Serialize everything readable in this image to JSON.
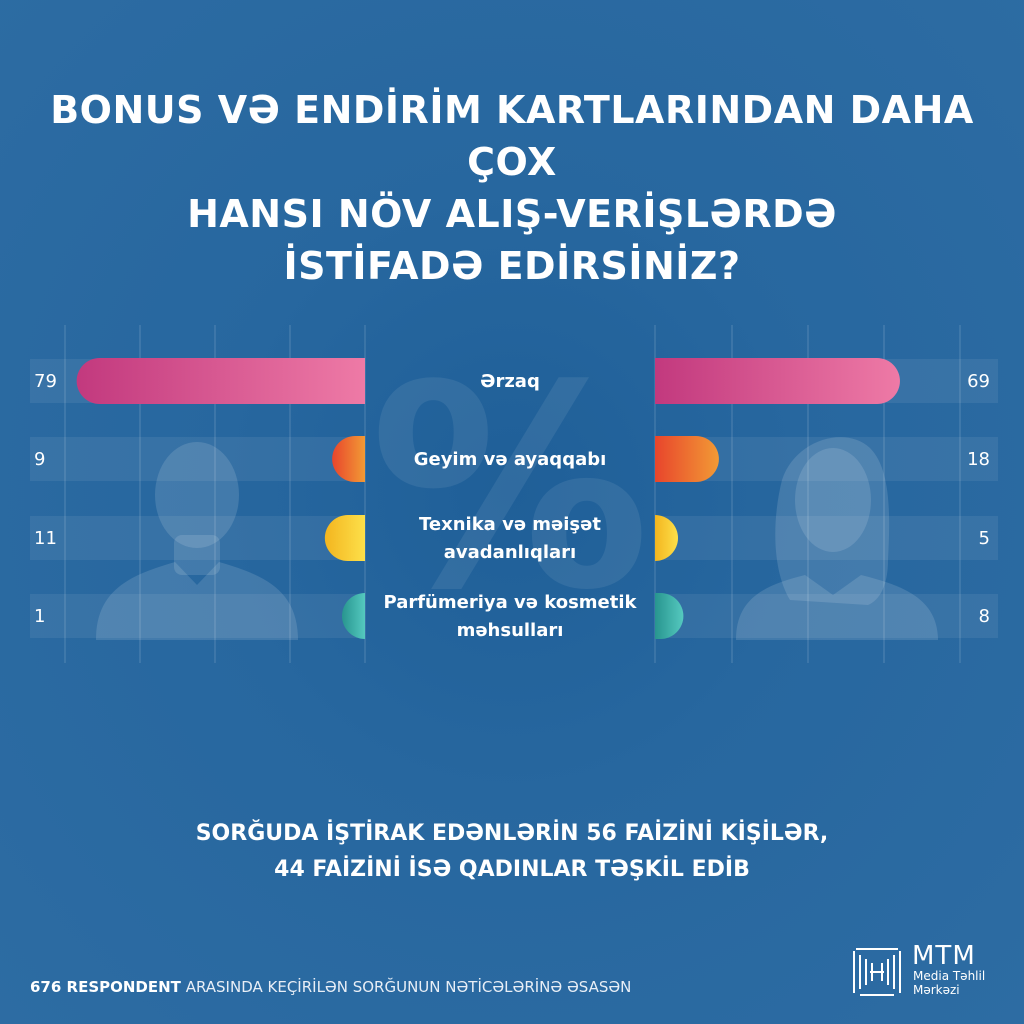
{
  "title_lines": [
    "BONUS VƏ ENDİRİM KARTLARINDAN DAHA ÇOX",
    "HANSI NÖV ALIŞ-VERİŞLƏRDƏ",
    "İSTİFADƏ EDİRSİNİZ?"
  ],
  "summary_lines": [
    "SORĞUDA İŞTİRAK EDƏNLƏRİN 56 FAİZİNİ KİŞİLƏR,",
    "44 FAİZİNİ İSƏ QADINLAR TƏŞKİL EDİB"
  ],
  "footer": {
    "strong": "676 RESPONDENT",
    "rest": " ARASINDA KEÇİRİLƏN SORĞUNUN NƏTİCƏLƏRİNƏ ƏSASƏN"
  },
  "logo": {
    "title": "MTM",
    "sub_lines": [
      "Media Təhlil",
      "Mərkəzi"
    ]
  },
  "chart_data": {
    "type": "bar",
    "orientation": "horizontal-butterfly",
    "categories": [
      "Ərzaq",
      "Geyim və ayaqqabı",
      "Texnika və məişət avadanlıqları",
      "Parfümeriya və kosmetik məhsulları"
    ],
    "category_lines": [
      [
        "Ərzaq"
      ],
      [
        "Geyim və ayaqqabı"
      ],
      [
        "Texnika və məişət",
        "avadanlıqları"
      ],
      [
        "Parfümeriya və kosmetik",
        "məhsulları"
      ]
    ],
    "series": [
      {
        "side": "left",
        "values": [
          79,
          9,
          11,
          1
        ]
      },
      {
        "side": "right",
        "values": [
          69,
          18,
          5,
          8
        ]
      }
    ],
    "colors": [
      [
        "#c2397e",
        "#ee7aa6"
      ],
      [
        "#e8452c",
        "#f29a35"
      ],
      [
        "#f3b51f",
        "#fde04a"
      ],
      [
        "#28958f",
        "#55c9bf"
      ]
    ],
    "center_symbol": "%",
    "grid": true
  }
}
